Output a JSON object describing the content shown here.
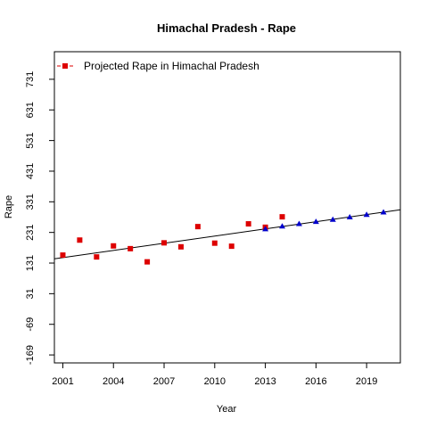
{
  "chart_data": {
    "type": "scatter",
    "title": "Himachal Pradesh  -  Rape",
    "xlabel": "Year",
    "ylabel": "Rape",
    "xlim": [
      2000.5,
      2021
    ],
    "ylim": [
      -195,
      821
    ],
    "x_ticks": [
      2001,
      2004,
      2007,
      2010,
      2013,
      2016,
      2019
    ],
    "y_ticks": [
      -169,
      -69,
      31,
      131,
      231,
      331,
      431,
      531,
      631,
      731
    ],
    "legend": {
      "label": "Projected Rape  in  Himachal Pradesh",
      "position": "top-left"
    },
    "series": [
      {
        "name": "Projected Rape  in  Himachal Pradesh",
        "marker": "square",
        "color": "#dd0000",
        "points": [
          [
            2001,
            157
          ],
          [
            2002,
            206
          ],
          [
            2003,
            151
          ],
          [
            2004,
            187
          ],
          [
            2005,
            178
          ],
          [
            2006,
            135
          ],
          [
            2007,
            197
          ],
          [
            2008,
            184
          ],
          [
            2009,
            250
          ],
          [
            2010,
            196
          ],
          [
            2011,
            186
          ],
          [
            2012,
            259
          ],
          [
            2013,
            248
          ],
          [
            2014,
            282
          ]
        ]
      },
      {
        "marker": "triangle",
        "color": "#0000cc",
        "points": [
          [
            2013,
            242
          ],
          [
            2014,
            251
          ],
          [
            2015,
            259
          ],
          [
            2016,
            266
          ],
          [
            2017,
            273
          ],
          [
            2018,
            281
          ],
          [
            2019,
            289
          ],
          [
            2020,
            297
          ]
        ]
      }
    ],
    "trend_line": {
      "from": [
        2000.5,
        145
      ],
      "to": [
        2021,
        305
      ],
      "color": "#000000"
    }
  }
}
